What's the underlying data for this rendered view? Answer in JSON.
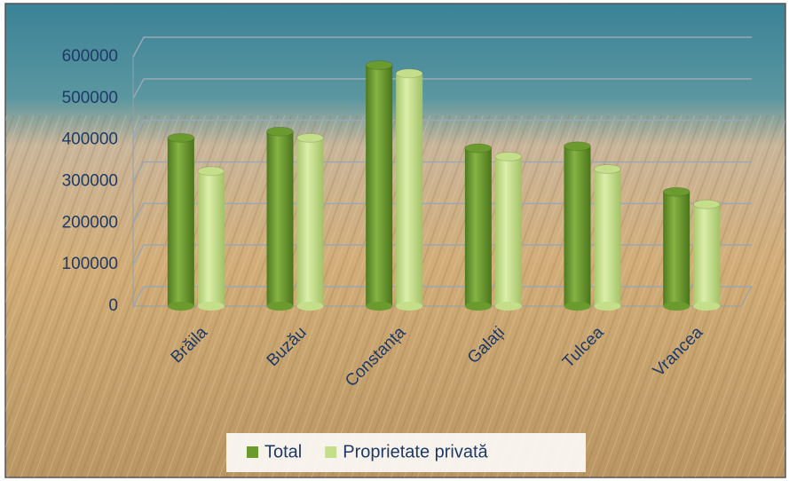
{
  "chart_data": {
    "type": "bar",
    "categories": [
      "Brăila",
      "Buzău",
      "Constanța",
      "Galați",
      "Tulcea",
      "Vrancea"
    ],
    "series": [
      {
        "name": "Total",
        "color": "#6b9b2f",
        "values": [
          405000,
          420000,
          580000,
          380000,
          385000,
          275000
        ]
      },
      {
        "name": "Proprietate privată",
        "color": "#c4de8a",
        "values": [
          325000,
          405000,
          560000,
          360000,
          330000,
          245000
        ]
      }
    ],
    "ylim": [
      0,
      600000
    ],
    "yticks": [
      0,
      100000,
      200000,
      300000,
      400000,
      500000,
      600000
    ],
    "grid": true,
    "legend": "bottom"
  }
}
